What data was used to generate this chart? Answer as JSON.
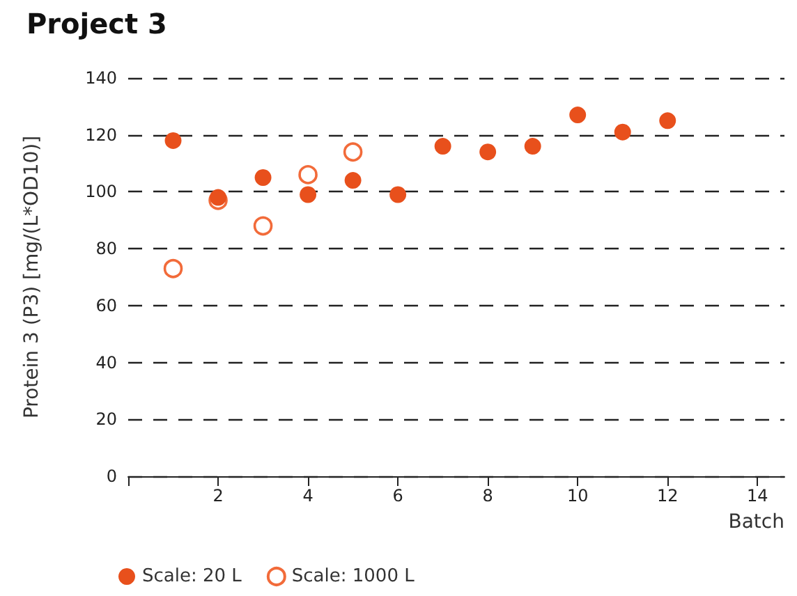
{
  "chart_data": {
    "type": "scatter",
    "title": "Project 3",
    "xlabel": "Batch",
    "ylabel": "Protein 3 (P3) [mg/(L*OD10)]",
    "series": [
      {
        "name": "Scale: 20 L",
        "color": "#e8501c",
        "x": [
          1,
          2,
          3,
          4,
          5,
          6,
          7,
          8,
          9,
          10,
          11,
          12
        ],
        "values": [
          118,
          98,
          105,
          99,
          104,
          99,
          116,
          114,
          116,
          127,
          121,
          125
        ]
      },
      {
        "name": "Scale: 1000 L",
        "color": "#f26b3a",
        "marker": "circle-open",
        "x": [
          1,
          2,
          3,
          4,
          5
        ],
        "values": [
          73,
          97,
          88,
          106,
          114
        ]
      }
    ],
    "xlim": [
      0,
      14.6
    ],
    "xticks": [
      {
        "value": 0,
        "label": null
      },
      2,
      4,
      6,
      8,
      10,
      12,
      14
    ],
    "ylim": [
      0,
      140
    ],
    "yticks": [
      0,
      20,
      40,
      60,
      80,
      100,
      120,
      140
    ],
    "grid": "y",
    "line_style": "dashed",
    "legend": "bottom left",
    "marker": "circle"
  }
}
